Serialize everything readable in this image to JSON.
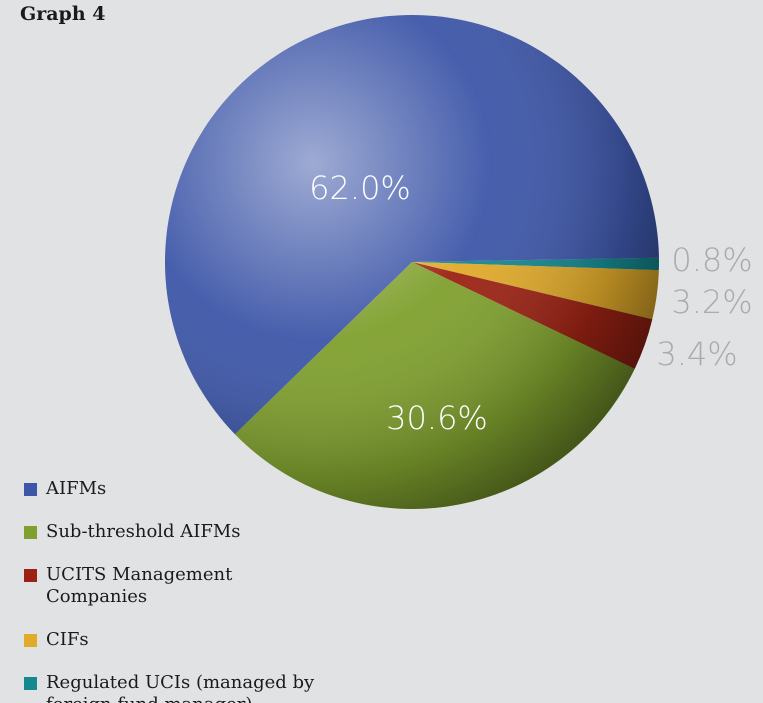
{
  "chart_data": {
    "type": "pie",
    "title": "Graph 4",
    "categories": [
      "AIFMs",
      "Sub-threshold AIFMs",
      "UCITS Management Companies",
      "CIFs",
      "Regulated UCIs (managed by foreign fund manager)"
    ],
    "values": [
      62.0,
      30.6,
      3.4,
      3.2,
      0.8
    ],
    "value_labels": [
      "62.0%",
      "30.6%",
      "3.4%",
      "3.2%",
      "0.8%"
    ],
    "colors": [
      "#3d56a8",
      "#7fa02e",
      "#9b2213",
      "#e0aa2a",
      "#14878f"
    ],
    "legend": "bottom-left"
  }
}
